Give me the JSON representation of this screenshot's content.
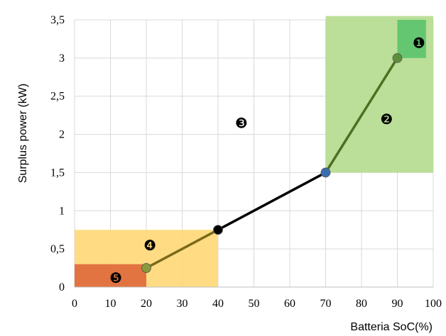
{
  "chart_data": {
    "type": "line",
    "xlabel": "Batteria SoC(%)",
    "ylabel": "Surplus power (kW)",
    "xlim": [
      0,
      100
    ],
    "ylim": [
      0,
      3.5
    ],
    "x_ticks": [
      "0",
      "10",
      "20",
      "30",
      "40",
      "50",
      "60",
      "70",
      "80",
      "90",
      "100"
    ],
    "y_ticks": [
      "0",
      "0,5",
      "1",
      "1,5",
      "2",
      "2,5",
      "3",
      "3,5"
    ],
    "grid": true,
    "segments": [
      {
        "x": [
          20,
          40
        ],
        "y": [
          0.25,
          0.75
        ],
        "color": "#7a6a1a"
      },
      {
        "x": [
          40,
          70
        ],
        "y": [
          0.75,
          1.5
        ],
        "color": "#000000"
      },
      {
        "x": [
          70,
          90
        ],
        "y": [
          1.5,
          3.0
        ],
        "color": "#4f6f23"
      }
    ],
    "points": [
      {
        "x": 20,
        "y": 0.25,
        "color": "#8a9a3a"
      },
      {
        "x": 40,
        "y": 0.75,
        "color": "#000000"
      },
      {
        "x": 70,
        "y": 1.5,
        "color": "#3a6db0"
      },
      {
        "x": 90,
        "y": 3.0,
        "color": "#5d8f3a"
      }
    ],
    "regions": [
      {
        "x": [
          70,
          100
        ],
        "y": [
          1.5,
          3.55
        ],
        "color": "#b5dc8f"
      },
      {
        "x": [
          90,
          98
        ],
        "y": [
          3.0,
          3.5
        ],
        "color": "#5cc36e"
      },
      {
        "x": [
          0,
          40
        ],
        "y": [
          0,
          0.75
        ],
        "color": "#ffd978"
      },
      {
        "x": [
          0,
          20
        ],
        "y": [
          0,
          0.3
        ],
        "color": "#e06a3c"
      }
    ],
    "annotations": [
      {
        "text": "❶",
        "x": 96,
        "y": 3.2
      },
      {
        "text": "❷",
        "x": 87,
        "y": 2.2
      },
      {
        "text": "❸",
        "x": 46.5,
        "y": 2.15
      },
      {
        "text": "❹",
        "x": 21,
        "y": 0.55
      },
      {
        "text": "❺",
        "x": 11.5,
        "y": 0.12
      }
    ]
  }
}
